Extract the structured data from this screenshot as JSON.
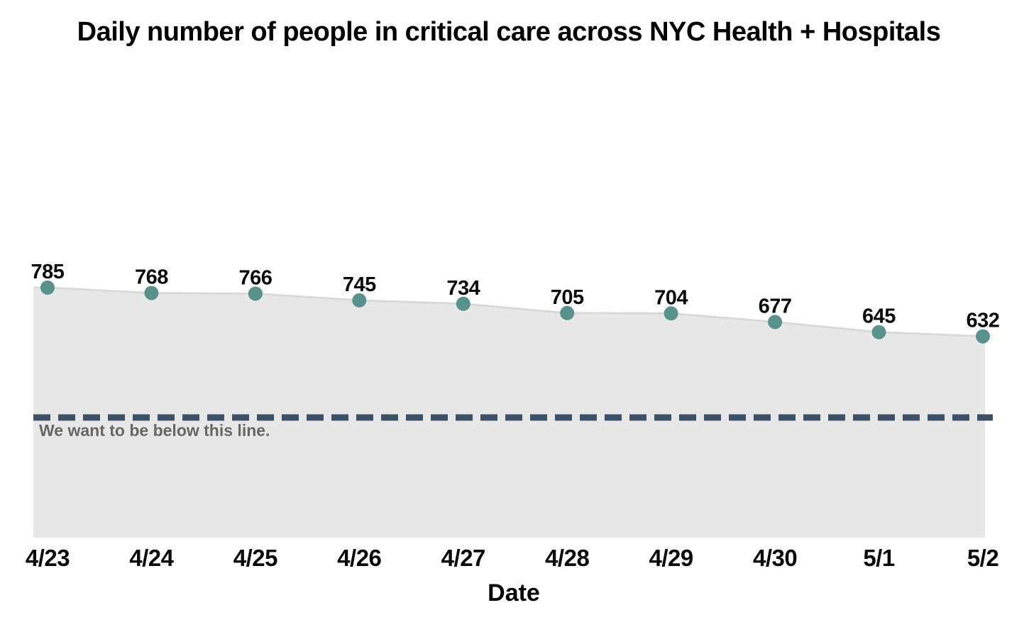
{
  "chart_data": {
    "type": "area",
    "title": "Daily number of people in critical care across NYC Health + Hospitals",
    "xlabel": "Date",
    "ylabel": "",
    "categories": [
      "4/23",
      "4/24",
      "4/25",
      "4/26",
      "4/27",
      "4/28",
      "4/29",
      "4/30",
      "5/1",
      "5/2"
    ],
    "values": [
      785,
      768,
      766,
      745,
      734,
      705,
      704,
      677,
      645,
      632
    ],
    "ylim": [
      0,
      1688
    ],
    "grid": false,
    "legend": "none",
    "point_labels_shown": true,
    "reference_line": {
      "value": 377,
      "label": "We want to be below this line.",
      "style": "dashed"
    },
    "colors": {
      "area_fill": "#e7e7e7",
      "trend_line": "#d9d9d9",
      "point": "#58928c",
      "reference_line": "#3a5168",
      "reference_label": "#666666",
      "text": "#000000"
    }
  }
}
